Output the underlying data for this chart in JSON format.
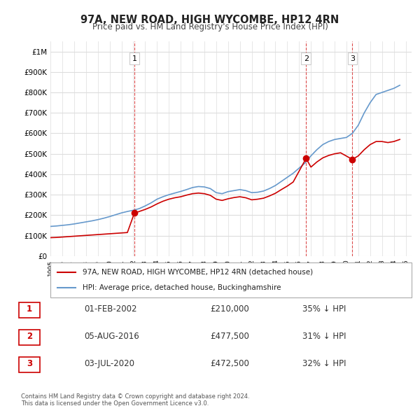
{
  "title": "97A, NEW ROAD, HIGH WYCOMBE, HP12 4RN",
  "subtitle": "Price paid vs. HM Land Registry's House Price Index (HPI)",
  "footer": "Contains HM Land Registry data © Crown copyright and database right 2024.\nThis data is licensed under the Open Government Licence v3.0.",
  "legend_label_red": "97A, NEW ROAD, HIGH WYCOMBE, HP12 4RN (detached house)",
  "legend_label_blue": "HPI: Average price, detached house, Buckinghamshire",
  "transactions": [
    {
      "num": 1,
      "date": "01-FEB-2002",
      "price": 210000,
      "hpi_diff": "35% ↓ HPI",
      "year": 2002.09
    },
    {
      "num": 2,
      "date": "05-AUG-2016",
      "price": 477500,
      "hpi_diff": "31% ↓ HPI",
      "year": 2016.59
    },
    {
      "num": 3,
      "date": "03-JUL-2020",
      "price": 472500,
      "hpi_diff": "32% ↓ HPI",
      "year": 2020.5
    }
  ],
  "red_color": "#cc0000",
  "blue_color": "#6699cc",
  "dashed_color": "#cc0000",
  "ylim": [
    0,
    1050000
  ],
  "yticks": [
    0,
    100000,
    200000,
    300000,
    400000,
    500000,
    600000,
    700000,
    800000,
    900000,
    1000000
  ],
  "ytick_labels": [
    "£0",
    "£100K",
    "£200K",
    "£300K",
    "£400K",
    "£500K",
    "£600K",
    "£700K",
    "£800K",
    "£900K",
    "£1M"
  ],
  "xlim_start": 1995.0,
  "xlim_end": 2025.5,
  "background_color": "#ffffff",
  "grid_color": "#dddddd",
  "hpi_years": [
    1995,
    1995.5,
    1996,
    1996.5,
    1997,
    1997.5,
    1998,
    1998.5,
    1999,
    1999.5,
    2000,
    2000.5,
    2001,
    2001.5,
    2002,
    2002.5,
    2003,
    2003.5,
    2004,
    2004.5,
    2005,
    2005.5,
    2006,
    2006.5,
    2007,
    2007.5,
    2008,
    2008.5,
    2009,
    2009.5,
    2010,
    2010.5,
    2011,
    2011.5,
    2012,
    2012.5,
    2013,
    2013.5,
    2014,
    2014.5,
    2015,
    2015.5,
    2016,
    2016.5,
    2017,
    2017.5,
    2018,
    2018.5,
    2019,
    2019.5,
    2020,
    2020.5,
    2021,
    2021.5,
    2022,
    2022.5,
    2023,
    2023.5,
    2024,
    2024.5
  ],
  "hpi_values": [
    145000,
    147000,
    150000,
    153000,
    157000,
    162000,
    167000,
    172000,
    178000,
    185000,
    193000,
    202000,
    211000,
    218000,
    224000,
    232000,
    245000,
    260000,
    278000,
    290000,
    300000,
    308000,
    316000,
    325000,
    335000,
    340000,
    338000,
    330000,
    310000,
    305000,
    315000,
    320000,
    325000,
    320000,
    310000,
    312000,
    318000,
    330000,
    345000,
    365000,
    385000,
    405000,
    430000,
    455000,
    490000,
    520000,
    545000,
    560000,
    570000,
    575000,
    580000,
    600000,
    640000,
    700000,
    750000,
    790000,
    800000,
    810000,
    820000,
    835000
  ],
  "red_years": [
    1995,
    1995.5,
    1996,
    1996.5,
    1997,
    1997.5,
    1998,
    1998.5,
    1999,
    1999.5,
    2000,
    2000.5,
    2001,
    2001.5,
    2002.09,
    2002.5,
    2003,
    2003.5,
    2004,
    2004.5,
    2005,
    2005.5,
    2006,
    2006.5,
    2007,
    2007.5,
    2008,
    2008.5,
    2009,
    2009.5,
    2010,
    2010.5,
    2011,
    2011.5,
    2012,
    2012.5,
    2013,
    2013.5,
    2014,
    2014.5,
    2015,
    2015.5,
    2016.59,
    2017,
    2017.5,
    2018,
    2018.5,
    2019,
    2019.5,
    2020.5,
    2021,
    2021.5,
    2022,
    2022.5,
    2023,
    2023.5,
    2024,
    2024.5
  ],
  "red_values": [
    90000,
    91000,
    93000,
    95000,
    97000,
    99000,
    101000,
    103000,
    105000,
    107000,
    109000,
    111000,
    113000,
    115000,
    210000,
    218000,
    228000,
    240000,
    255000,
    268000,
    278000,
    285000,
    290000,
    298000,
    305000,
    308000,
    305000,
    297000,
    278000,
    272000,
    280000,
    286000,
    290000,
    285000,
    275000,
    278000,
    283000,
    294000,
    307000,
    325000,
    342000,
    362000,
    477500,
    435000,
    460000,
    480000,
    492000,
    500000,
    505000,
    472500,
    490000,
    520000,
    545000,
    560000,
    560000,
    555000,
    560000,
    570000
  ]
}
